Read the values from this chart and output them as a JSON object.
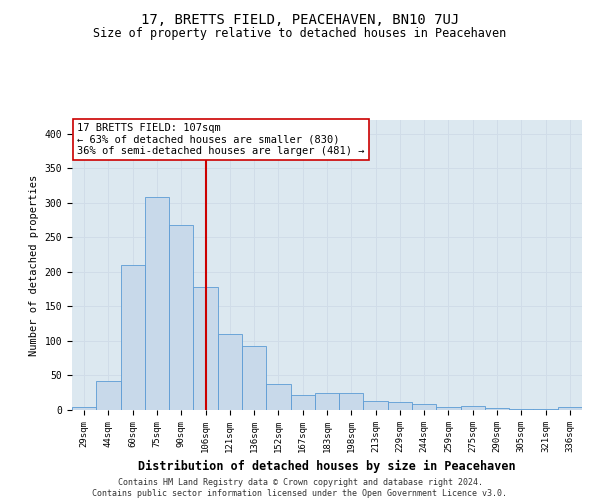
{
  "title": "17, BRETTS FIELD, PEACEHAVEN, BN10 7UJ",
  "subtitle": "Size of property relative to detached houses in Peacehaven",
  "xlabel": "Distribution of detached houses by size in Peacehaven",
  "ylabel": "Number of detached properties",
  "categories": [
    "29sqm",
    "44sqm",
    "60sqm",
    "75sqm",
    "90sqm",
    "106sqm",
    "121sqm",
    "136sqm",
    "152sqm",
    "167sqm",
    "183sqm",
    "198sqm",
    "213sqm",
    "229sqm",
    "244sqm",
    "259sqm",
    "275sqm",
    "290sqm",
    "305sqm",
    "321sqm",
    "336sqm"
  ],
  "values": [
    5,
    42,
    210,
    308,
    268,
    178,
    110,
    92,
    38,
    22,
    25,
    25,
    13,
    12,
    9,
    4,
    6,
    3,
    2,
    1,
    4
  ],
  "bar_color": "#c8d9ea",
  "bar_edge_color": "#5b9bd5",
  "red_line_index": 5,
  "annotation_line1": "17 BRETTS FIELD: 107sqm",
  "annotation_line2": "← 63% of detached houses are smaller (830)",
  "annotation_line3": "36% of semi-detached houses are larger (481) →",
  "annotation_box_color": "#ffffff",
  "annotation_box_edge": "#cc0000",
  "red_line_color": "#cc0000",
  "grid_color": "#d0dce8",
  "background_color": "#dce8f0",
  "ylim": [
    0,
    420
  ],
  "yticks": [
    0,
    50,
    100,
    150,
    200,
    250,
    300,
    350,
    400
  ],
  "footer1": "Contains HM Land Registry data © Crown copyright and database right 2024.",
  "footer2": "Contains public sector information licensed under the Open Government Licence v3.0.",
  "title_fontsize": 10,
  "subtitle_fontsize": 8.5,
  "tick_fontsize": 6.5,
  "ylabel_fontsize": 7.5,
  "xlabel_fontsize": 8.5,
  "footer_fontsize": 6.0,
  "annotation_fontsize": 7.5
}
